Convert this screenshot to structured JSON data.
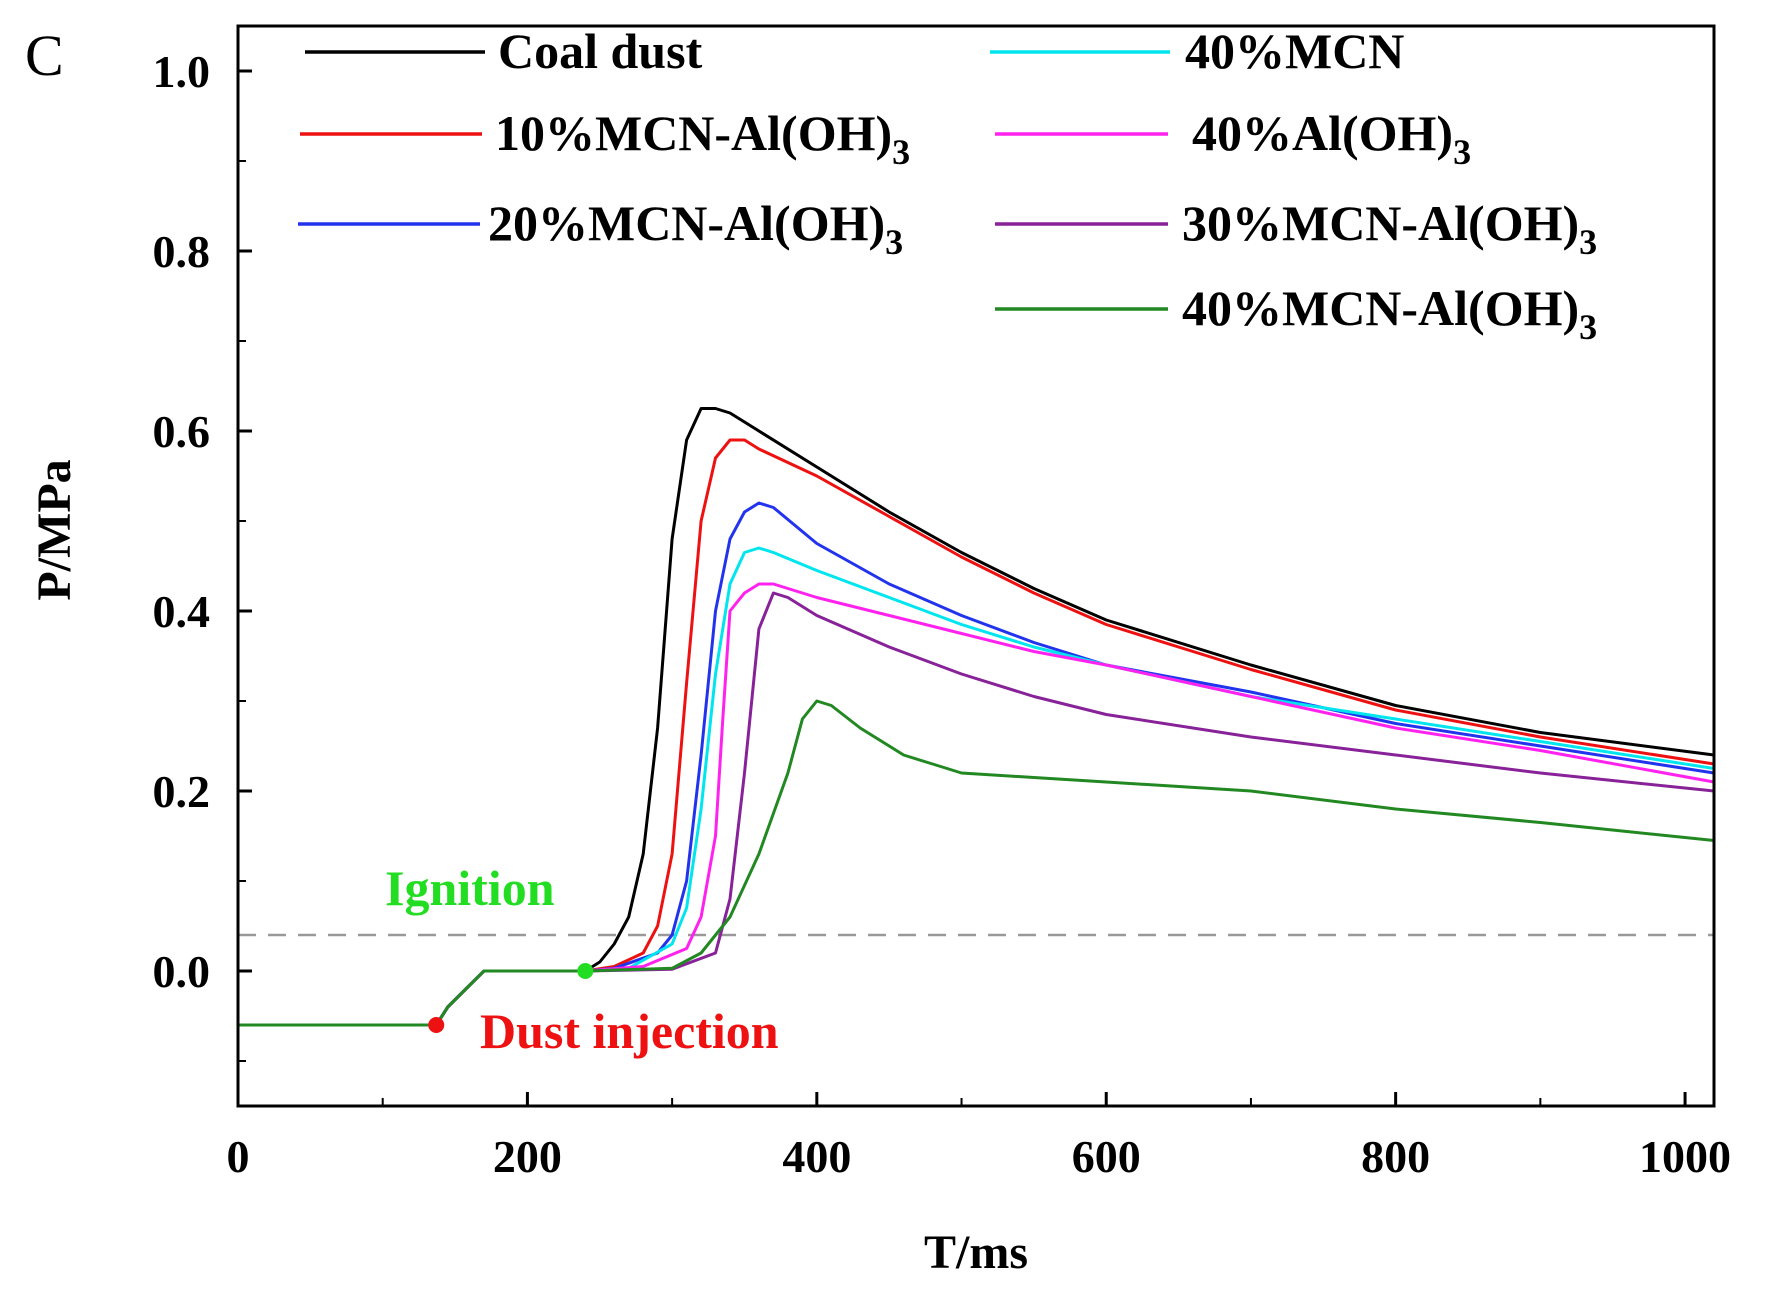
{
  "panel_label": "C",
  "chart_data": {
    "type": "line",
    "xlabel": "T/ms",
    "ylabel": "P/MPa",
    "xlim": [
      0,
      1020
    ],
    "ylim": [
      -0.15,
      1.05
    ],
    "x_ticks": [
      0,
      200,
      400,
      600,
      800,
      1000
    ],
    "x_minor_ticks": [
      100,
      300,
      500,
      700,
      900
    ],
    "y_ticks": [
      0.0,
      0.2,
      0.4,
      0.6,
      0.8,
      1.0
    ],
    "y_tick_labels": [
      "0.0",
      "0.2",
      "0.4",
      "0.6",
      "0.8",
      "1.0"
    ],
    "reference_line": {
      "y": 0.04,
      "color": "#999999",
      "style": "dashed"
    },
    "annotations": [
      {
        "text": "Ignition",
        "x": 240,
        "y": 0.0,
        "color": "#22dd22"
      },
      {
        "text": "Dust injection",
        "x": 137,
        "y": -0.06,
        "color": "#ee1111"
      }
    ],
    "series": [
      {
        "name": "Coal dust",
        "legend_label": "Coal dust",
        "legend_sub": "",
        "color": "#000000",
        "x": [
          0,
          100,
          137,
          145,
          170,
          200,
          240,
          250,
          260,
          270,
          280,
          290,
          300,
          310,
          320,
          330,
          340,
          350,
          360,
          400,
          450,
          500,
          550,
          600,
          700,
          800,
          900,
          1020
        ],
        "y": [
          -0.06,
          -0.06,
          -0.06,
          -0.04,
          0.0,
          0.0,
          0.0,
          0.01,
          0.03,
          0.06,
          0.13,
          0.27,
          0.48,
          0.59,
          0.625,
          0.625,
          0.62,
          0.61,
          0.6,
          0.56,
          0.51,
          0.465,
          0.425,
          0.39,
          0.34,
          0.295,
          0.265,
          0.24
        ]
      },
      {
        "name": "10%MCN-Al(OH)3",
        "legend_label": "10%MCN-Al(OH)",
        "legend_sub": "3",
        "color": "#ee1111",
        "x": [
          0,
          100,
          137,
          145,
          170,
          200,
          240,
          260,
          280,
          290,
          300,
          310,
          320,
          330,
          340,
          350,
          360,
          400,
          450,
          500,
          550,
          600,
          700,
          800,
          900,
          1020
        ],
        "y": [
          -0.06,
          -0.06,
          -0.06,
          -0.04,
          0.0,
          0.0,
          0.0,
          0.005,
          0.02,
          0.05,
          0.13,
          0.32,
          0.5,
          0.57,
          0.59,
          0.59,
          0.58,
          0.55,
          0.505,
          0.46,
          0.42,
          0.385,
          0.335,
          0.29,
          0.26,
          0.23
        ]
      },
      {
        "name": "20%MCN-Al(OH)3",
        "legend_label": "20%MCN-Al(OH)",
        "legend_sub": "3",
        "color": "#2233ee",
        "x": [
          0,
          100,
          137,
          145,
          170,
          200,
          240,
          260,
          290,
          300,
          310,
          320,
          330,
          340,
          350,
          360,
          370,
          400,
          450,
          500,
          550,
          600,
          700,
          800,
          900,
          1020
        ],
        "y": [
          -0.06,
          -0.06,
          -0.06,
          -0.04,
          0.0,
          0.0,
          0.0,
          0.003,
          0.02,
          0.04,
          0.1,
          0.24,
          0.4,
          0.48,
          0.51,
          0.52,
          0.515,
          0.475,
          0.43,
          0.395,
          0.365,
          0.34,
          0.31,
          0.275,
          0.25,
          0.22
        ]
      },
      {
        "name": "40%MCN",
        "legend_label": "40%MCN",
        "legend_sub": "",
        "color": "#00e5ee",
        "x": [
          0,
          100,
          137,
          145,
          170,
          200,
          240,
          270,
          300,
          310,
          320,
          330,
          340,
          350,
          360,
          370,
          400,
          450,
          500,
          550,
          600,
          700,
          800,
          900,
          1020
        ],
        "y": [
          -0.06,
          -0.06,
          -0.06,
          -0.04,
          0.0,
          0.0,
          0.0,
          0.003,
          0.03,
          0.07,
          0.18,
          0.33,
          0.43,
          0.465,
          0.47,
          0.465,
          0.445,
          0.415,
          0.385,
          0.36,
          0.34,
          0.305,
          0.28,
          0.255,
          0.225
        ]
      },
      {
        "name": "40%Al(OH)3",
        "legend_label": "40%Al(OH)",
        "legend_sub": "3",
        "color": "#ff22ee",
        "x": [
          0,
          100,
          137,
          145,
          170,
          200,
          240,
          280,
          310,
          320,
          330,
          335,
          340,
          345,
          350,
          360,
          370,
          380,
          400,
          450,
          500,
          550,
          600,
          700,
          800,
          900,
          1020
        ],
        "y": [
          -0.06,
          -0.06,
          -0.06,
          -0.04,
          0.0,
          0.0,
          0.0,
          0.005,
          0.025,
          0.06,
          0.15,
          0.28,
          0.4,
          0.41,
          0.42,
          0.43,
          0.43,
          0.425,
          0.415,
          0.395,
          0.375,
          0.355,
          0.34,
          0.305,
          0.27,
          0.245,
          0.21
        ]
      },
      {
        "name": "30%MCN-Al(OH)3",
        "legend_label": "30%MCN-Al(OH)",
        "legend_sub": "3",
        "color": "#882299",
        "x": [
          0,
          100,
          137,
          145,
          170,
          200,
          240,
          300,
          330,
          340,
          350,
          360,
          370,
          380,
          400,
          450,
          500,
          550,
          600,
          700,
          800,
          900,
          1020
        ],
        "y": [
          -0.06,
          -0.06,
          -0.06,
          -0.04,
          0.0,
          0.0,
          0.0,
          0.002,
          0.02,
          0.08,
          0.22,
          0.38,
          0.42,
          0.415,
          0.395,
          0.36,
          0.33,
          0.305,
          0.285,
          0.26,
          0.24,
          0.22,
          0.2
        ]
      },
      {
        "name": "40%MCN-Al(OH)3",
        "legend_label": "40%MCN-Al(OH)",
        "legend_sub": "3",
        "color": "#228822",
        "x": [
          0,
          100,
          137,
          145,
          170,
          200,
          240,
          300,
          320,
          340,
          360,
          380,
          390,
          400,
          410,
          430,
          460,
          480,
          500,
          550,
          600,
          700,
          800,
          900,
          1020
        ],
        "y": [
          -0.06,
          -0.06,
          -0.06,
          -0.04,
          0.0,
          0.0,
          0.0,
          0.003,
          0.02,
          0.06,
          0.13,
          0.22,
          0.28,
          0.3,
          0.295,
          0.27,
          0.24,
          0.23,
          0.22,
          0.215,
          0.21,
          0.2,
          0.18,
          0.165,
          0.145
        ]
      }
    ]
  }
}
